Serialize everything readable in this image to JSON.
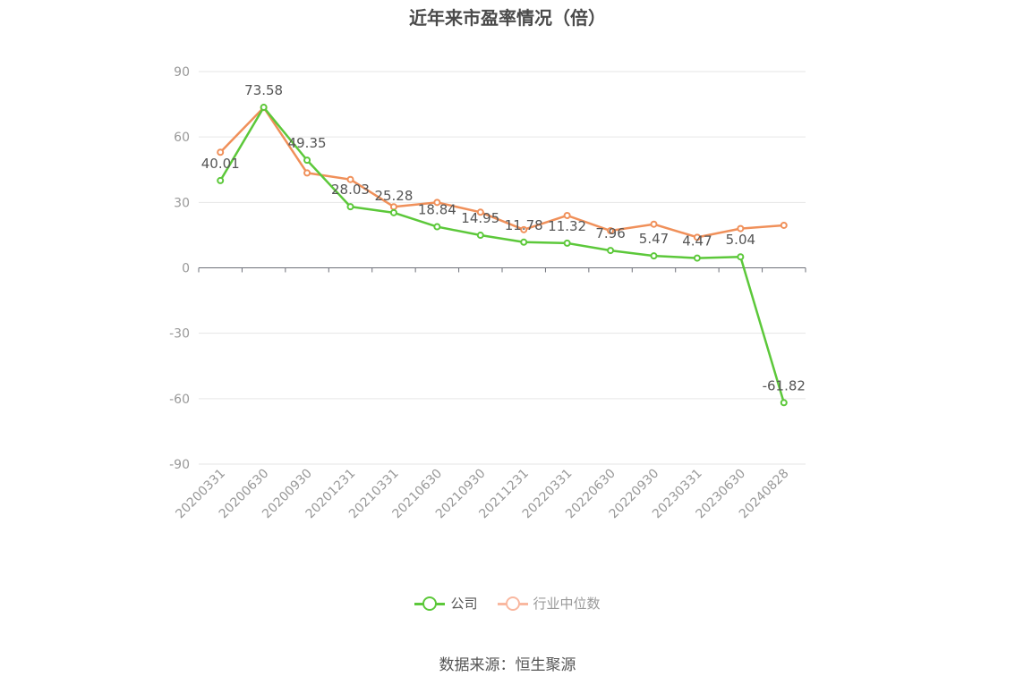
{
  "chart_data": {
    "type": "line",
    "title": "近年来市盈率情况（倍）",
    "categories": [
      "20200331",
      "20200630",
      "20200930",
      "20201231",
      "20210331",
      "20210630",
      "20210930",
      "20211231",
      "20220331",
      "20220630",
      "20220930",
      "20230331",
      "20230630",
      "20240828"
    ],
    "series": [
      {
        "name": "公司",
        "color": "#5cc83a",
        "values": [
          40.01,
          73.58,
          49.35,
          28.03,
          25.28,
          18.84,
          14.95,
          11.78,
          11.32,
          7.96,
          5.47,
          4.47,
          5.04,
          -61.82
        ],
        "data_labels": [
          "40.01",
          "73.58",
          "49.35",
          "28.03",
          "25.28",
          "18.84",
          "14.95",
          "11.78",
          "11.32",
          "7.96",
          "5.47",
          "4.47",
          "5.04",
          "-61.82"
        ]
      },
      {
        "name": "行业中位数",
        "color": "#f0905a",
        "values": [
          53.0,
          73.5,
          43.5,
          40.5,
          28.0,
          30.0,
          25.5,
          17.5,
          24.0,
          17.0,
          20.0,
          14.0,
          18.0,
          19.5
        ]
      }
    ],
    "yticks": [
      90,
      60,
      30,
      0,
      -30,
      -60,
      -90
    ],
    "ytick_labels": [
      "90",
      "60",
      "30",
      "0",
      "-30",
      "-60",
      "-90"
    ],
    "ylim": [
      -90,
      90
    ],
    "grid": true,
    "legend_position": "bottom-center"
  },
  "legend": [
    {
      "label": "公司",
      "color": "#5cc83a",
      "text_color": "#555555"
    },
    {
      "label": "行业中位数",
      "color": "#f9b8a0",
      "text_color": "#999999"
    }
  ],
  "source": "数据来源：恒生聚源"
}
